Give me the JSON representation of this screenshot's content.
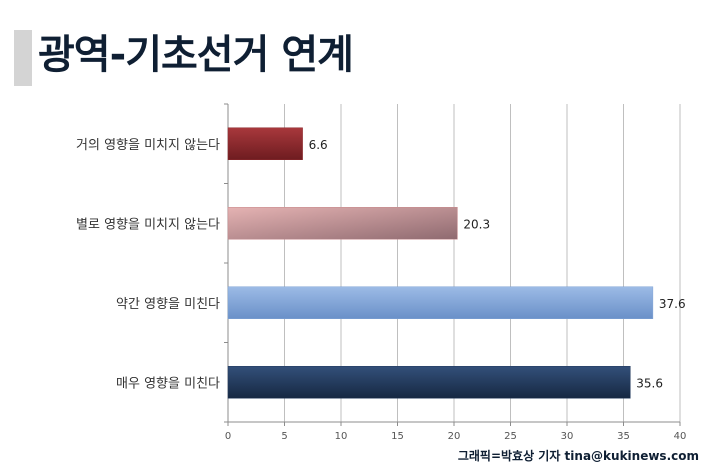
{
  "title": "광역-기초선거 연계",
  "credit": "그래픽=박효상 기자 tina@kukinews.com",
  "chart_data": {
    "type": "bar",
    "orientation": "horizontal",
    "categories": [
      "거의 영향을 미치지 않는다",
      "별로 영향을 미치지 않는다",
      "약간 영향을 미친다",
      "매우 영향을 미친다"
    ],
    "values": [
      6.6,
      20.3,
      37.6,
      35.6
    ],
    "value_labels": [
      "6.6",
      "20.3",
      "37.6",
      "35.6"
    ],
    "colors": [
      "#8e2a2e",
      "#c98a8c",
      "#7fa3d6",
      "#243b5e"
    ],
    "xlim": [
      0,
      40
    ],
    "xticks": [
      0,
      5,
      10,
      15,
      20,
      25,
      30,
      35,
      40
    ],
    "grid": true
  }
}
